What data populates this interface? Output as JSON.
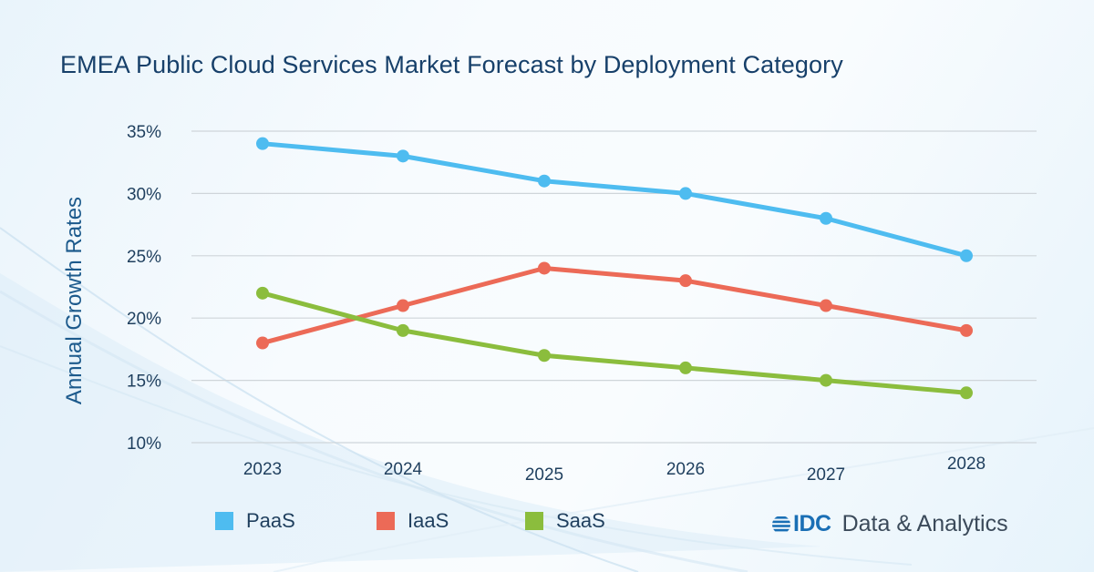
{
  "header": {
    "title": "EMEA Public Cloud Services Market Forecast by Deployment Category"
  },
  "brand": {
    "name": "IDC",
    "tagline": "Data & Analytics"
  },
  "chart_data": {
    "type": "line",
    "title": "EMEA Public Cloud Services Market Forecast by Deployment Category",
    "xlabel": "",
    "ylabel": "Annual Growth Rates",
    "x": [
      "2023",
      "2024",
      "2025",
      "2026",
      "2027",
      "2028"
    ],
    "ylim": [
      10,
      35
    ],
    "yticks": [
      10,
      15,
      20,
      25,
      30,
      35
    ],
    "ytick_labels": [
      "10%",
      "15%",
      "20%",
      "25%",
      "30%",
      "35%"
    ],
    "grid": true,
    "legend_position": "bottom-left",
    "series": [
      {
        "name": "PaaS",
        "color": "#4ebcf0",
        "values": [
          34,
          33,
          31,
          30,
          28,
          25
        ]
      },
      {
        "name": "IaaS",
        "color": "#ec6a57",
        "values": [
          18,
          21,
          24,
          23,
          21,
          19
        ]
      },
      {
        "name": "SaaS",
        "color": "#8bbd3d",
        "values": [
          22,
          19,
          17,
          16,
          15,
          14
        ]
      }
    ]
  }
}
